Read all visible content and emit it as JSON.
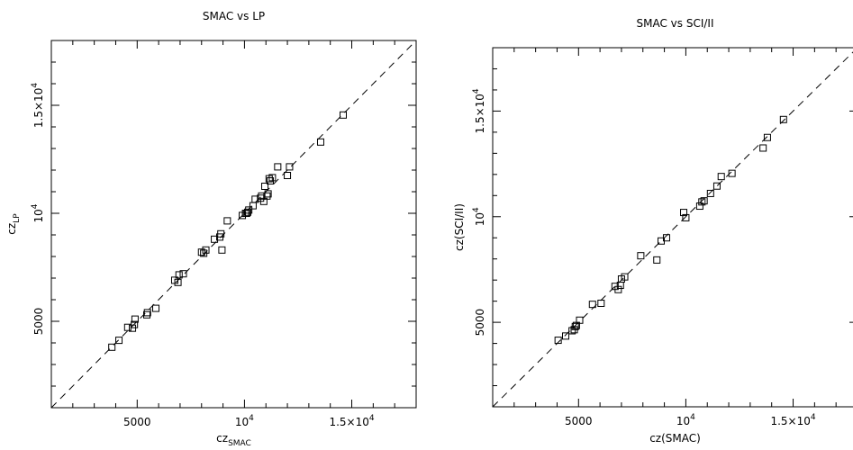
{
  "chart_data": [
    {
      "type": "scatter",
      "title": "SMAC vs LP",
      "xlabel": {
        "base": "cz",
        "sub": "SMAC"
      },
      "ylabel": {
        "base": "cz",
        "sub": "LP"
      },
      "xlim": [
        1000,
        18000
      ],
      "ylim": [
        1000,
        18000
      ],
      "x_ticks": [
        {
          "value": 5000,
          "label": "5000"
        },
        {
          "value": 10000,
          "mantissa": "10",
          "exp": "4"
        },
        {
          "value": 15000,
          "mantissa": "1.5×10",
          "exp": "4"
        }
      ],
      "y_ticks": [
        {
          "value": 5000,
          "label": "5000"
        },
        {
          "value": 10000,
          "mantissa": "10",
          "exp": "4"
        },
        {
          "value": 15000,
          "mantissa": "1.5×10",
          "exp": "4"
        }
      ],
      "reference_line": "y = x (dashed)",
      "x": [
        3820,
        4150,
        4560,
        4780,
        4870,
        4900,
        5450,
        5480,
        5870,
        6750,
        6900,
        6950,
        7150,
        8000,
        8100,
        8200,
        8600,
        8850,
        8900,
        8950,
        9200,
        9900,
        10050,
        10100,
        10150,
        10200,
        10400,
        10500,
        10750,
        10800,
        10900,
        10950,
        11050,
        11100,
        11150,
        11200,
        11300,
        11550,
        12000,
        12100,
        13550,
        14600
      ],
      "y": [
        3800,
        4120,
        4720,
        4680,
        4850,
        5100,
        5300,
        5400,
        5600,
        6900,
        6800,
        7150,
        7200,
        8200,
        8150,
        8300,
        8800,
        8900,
        9050,
        8300,
        9650,
        9900,
        10000,
        10000,
        10050,
        10150,
        10350,
        10650,
        10700,
        10800,
        10550,
        11250,
        10800,
        10900,
        11600,
        11500,
        11650,
        12150,
        11750,
        12150,
        13300,
        14550
      ]
    },
    {
      "type": "scatter",
      "title": "SMAC vs SCI/II",
      "xlabel": "cz(SMAC)",
      "ylabel": "cz(SCI/II)",
      "xlim": [
        1000,
        18000
      ],
      "ylim": [
        1000,
        18000
      ],
      "x_ticks": [
        {
          "value": 5000,
          "label": "5000"
        },
        {
          "value": 10000,
          "mantissa": "10",
          "exp": "4"
        },
        {
          "value": 15000,
          "mantissa": "1.5×10",
          "exp": "4"
        }
      ],
      "y_ticks": [
        {
          "value": 5000,
          "label": "5000"
        },
        {
          "value": 10000,
          "mantissa": "10",
          "exp": "4"
        },
        {
          "value": 15000,
          "mantissa": "1.5×10",
          "exp": "4"
        }
      ],
      "reference_line": "y = x (dashed)",
      "x": [
        4050,
        4400,
        4700,
        4800,
        4850,
        4900,
        5050,
        5650,
        6050,
        6700,
        6850,
        6950,
        7000,
        7150,
        7900,
        8650,
        8850,
        9100,
        9900,
        10000,
        10650,
        10750,
        10850,
        11150,
        11450,
        11650,
        12150,
        13600,
        13800,
        14550
      ],
      "y": [
        4150,
        4350,
        4600,
        4650,
        4800,
        4850,
        5100,
        5850,
        5900,
        6700,
        6550,
        6750,
        7050,
        7150,
        8150,
        7950,
        8850,
        9000,
        10200,
        9950,
        10500,
        10700,
        10750,
        11100,
        11450,
        11900,
        12050,
        13250,
        13750,
        14600
      ]
    }
  ]
}
